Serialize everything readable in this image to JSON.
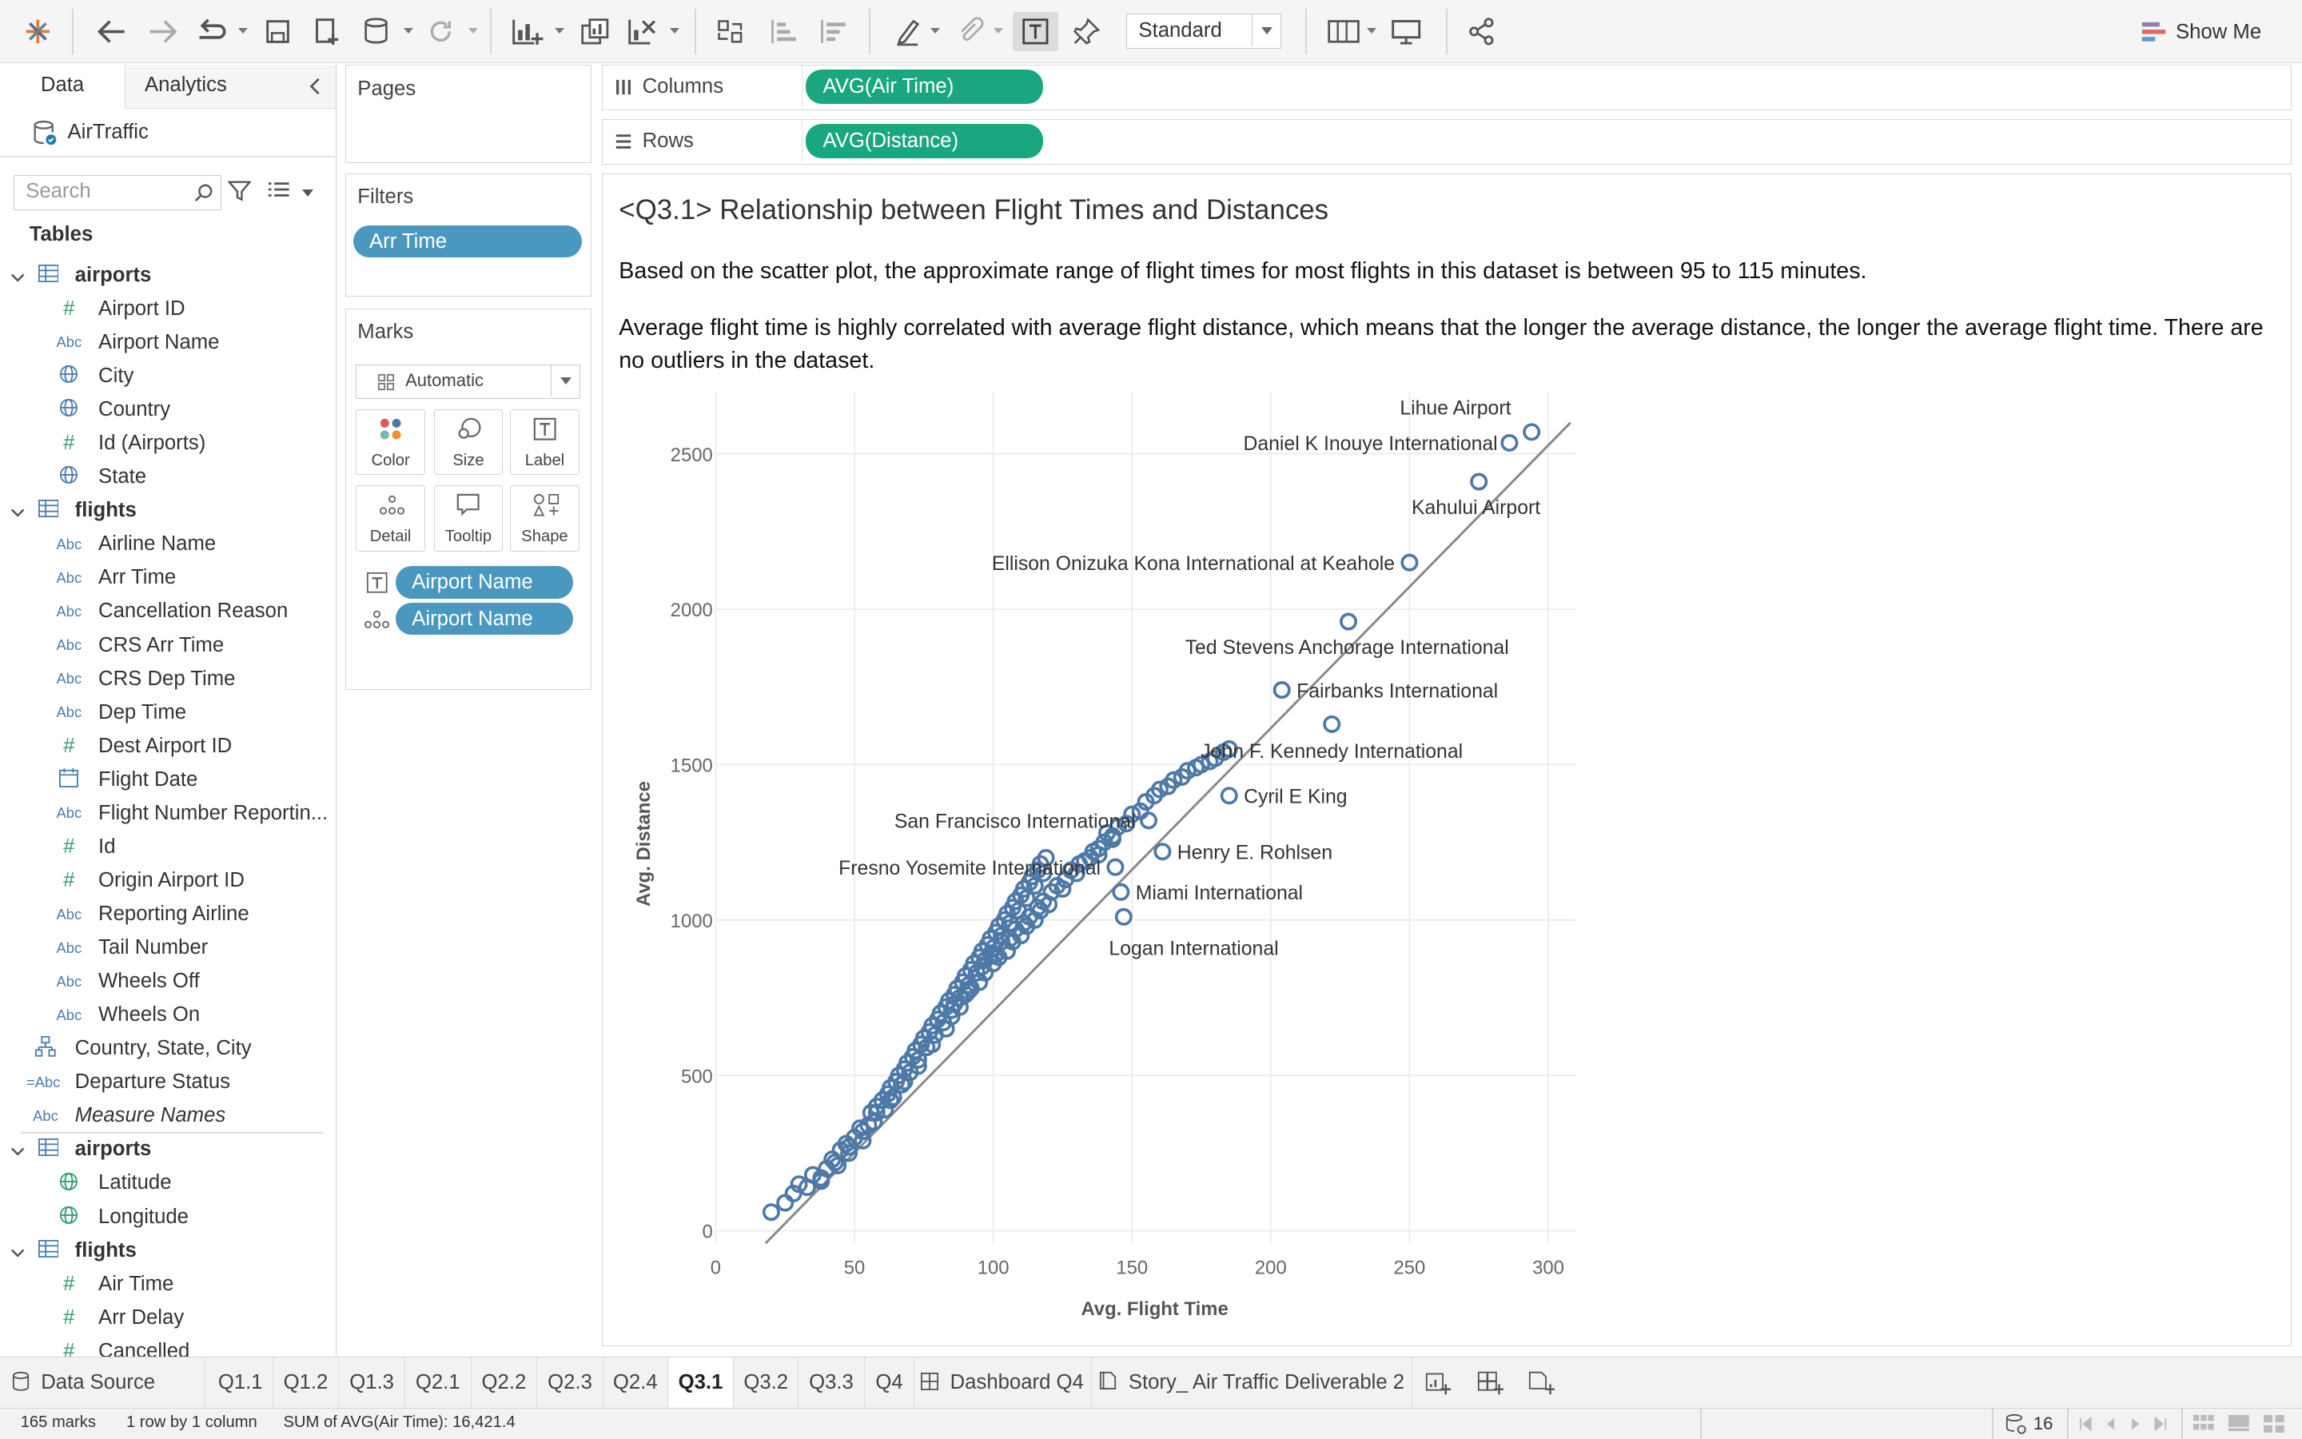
{
  "toolbar": {
    "view_select": "Standard",
    "show_me": "Show Me"
  },
  "data_pane": {
    "tab_data": "Data",
    "tab_analytics": "Analytics",
    "datasource": "AirTraffic",
    "search_placeholder": "Search",
    "tables_heading": "Tables",
    "tree": [
      {
        "type": "table",
        "label": "airports"
      },
      {
        "type": "number",
        "label": "Airport ID"
      },
      {
        "type": "string",
        "label": "Airport Name"
      },
      {
        "type": "geo",
        "label": "City"
      },
      {
        "type": "geo",
        "label": "Country"
      },
      {
        "type": "number",
        "label": "Id (Airports)"
      },
      {
        "type": "geo",
        "label": "State"
      },
      {
        "type": "table",
        "label": "flights"
      },
      {
        "type": "string",
        "label": "Airline Name"
      },
      {
        "type": "string",
        "label": "Arr Time"
      },
      {
        "type": "string",
        "label": "Cancellation Reason"
      },
      {
        "type": "string",
        "label": "CRS Arr Time"
      },
      {
        "type": "string",
        "label": "CRS Dep Time"
      },
      {
        "type": "string",
        "label": "Dep Time"
      },
      {
        "type": "number",
        "label": "Dest Airport ID"
      },
      {
        "type": "date",
        "label": "Flight Date"
      },
      {
        "type": "string",
        "label": "Flight Number Reportin..."
      },
      {
        "type": "number",
        "label": "Id"
      },
      {
        "type": "number",
        "label": "Origin Airport ID"
      },
      {
        "type": "string",
        "label": "Reporting Airline"
      },
      {
        "type": "string",
        "label": "Tail Number"
      },
      {
        "type": "string",
        "label": "Wheels Off"
      },
      {
        "type": "string",
        "label": "Wheels On"
      },
      {
        "type": "hierarchy",
        "label": "Country, State, City"
      },
      {
        "type": "group",
        "label": "Departure Status"
      },
      {
        "type": "string-italic",
        "label": "Measure Names"
      },
      {
        "type": "table",
        "label": "airports"
      },
      {
        "type": "geo-measure",
        "label": "Latitude"
      },
      {
        "type": "geo-measure",
        "label": "Longitude"
      },
      {
        "type": "table",
        "label": "flights"
      },
      {
        "type": "measure",
        "label": "Air Time"
      },
      {
        "type": "measure",
        "label": "Arr Delay"
      },
      {
        "type": "measure",
        "label": "Cancelled"
      }
    ]
  },
  "pages_card": {
    "title": "Pages"
  },
  "filters_card": {
    "title": "Filters",
    "pills": [
      "Arr Time"
    ]
  },
  "marks_card": {
    "title": "Marks",
    "mark_type": "Automatic",
    "buttons": [
      "Color",
      "Size",
      "Label",
      "Detail",
      "Tooltip",
      "Shape"
    ],
    "fields": [
      "Airport Name",
      "Airport Name"
    ]
  },
  "shelves": {
    "columns_label": "Columns",
    "columns_pill": "AVG(Air Time)",
    "rows_label": "Rows",
    "rows_pill": "AVG(Distance)"
  },
  "viz": {
    "title": "<Q3.1> Relationship between Flight Times and Distances",
    "text1": "Based on the scatter plot, the approximate range of flight times for most flights in this dataset is between 95 to 115 minutes.",
    "text2": "Average flight time is highly correlated with average flight distance, which means that the longer the average distance, the longer the average flight time. There are no outliers in the dataset."
  },
  "chart_data": {
    "type": "scatter",
    "xlabel": "Avg. Flight Time",
    "ylabel": "Avg. Distance",
    "xlim": [
      0,
      310
    ],
    "ylim": [
      -40,
      2700
    ],
    "xticks": [
      0,
      50,
      100,
      150,
      200,
      250,
      300
    ],
    "yticks": [
      0,
      500,
      1000,
      1500,
      2000,
      2500
    ],
    "grid": true,
    "trend_line": {
      "x1": 18,
      "y1": -40,
      "x2": 308,
      "y2": 2600
    },
    "labeled_points": [
      {
        "label": "Lihue Airport",
        "x": 294,
        "y": 2570
      },
      {
        "label": "Daniel K Inouye International",
        "x": 286,
        "y": 2535
      },
      {
        "label": "Kahului Airport",
        "x": 275,
        "y": 2410
      },
      {
        "label": "Ellison Onizuka Kona International at Keahole",
        "x": 250,
        "y": 2150
      },
      {
        "label": "Ted Stevens Anchorage International",
        "x": 228,
        "y": 1960
      },
      {
        "label": "Fairbanks International",
        "x": 204,
        "y": 1740
      },
      {
        "label": "John F. Kennedy International",
        "x": 222,
        "y": 1630
      },
      {
        "label": "Cyril E King",
        "x": 185,
        "y": 1400
      },
      {
        "label": "San Francisco International",
        "x": 156,
        "y": 1320
      },
      {
        "label": "Henry E. Rohlsen",
        "x": 161,
        "y": 1220
      },
      {
        "label": "Fresno Yosemite International",
        "x": 144,
        "y": 1170
      },
      {
        "label": "Miami International",
        "x": 146,
        "y": 1090
      },
      {
        "label": "Logan International",
        "x": 147,
        "y": 1010
      }
    ],
    "points": [
      [
        20,
        60
      ],
      [
        25,
        90
      ],
      [
        28,
        120
      ],
      [
        30,
        150
      ],
      [
        33,
        140
      ],
      [
        35,
        180
      ],
      [
        38,
        170
      ],
      [
        40,
        200
      ],
      [
        42,
        230
      ],
      [
        44,
        210
      ],
      [
        45,
        260
      ],
      [
        47,
        280
      ],
      [
        48,
        250
      ],
      [
        50,
        300
      ],
      [
        52,
        330
      ],
      [
        53,
        290
      ],
      [
        55,
        340
      ],
      [
        56,
        380
      ],
      [
        57,
        350
      ],
      [
        58,
        400
      ],
      [
        60,
        420
      ],
      [
        61,
        390
      ],
      [
        62,
        440
      ],
      [
        63,
        460
      ],
      [
        64,
        430
      ],
      [
        65,
        480
      ],
      [
        66,
        500
      ],
      [
        67,
        470
      ],
      [
        68,
        520
      ],
      [
        69,
        540
      ],
      [
        70,
        510
      ],
      [
        71,
        560
      ],
      [
        72,
        580
      ],
      [
        73,
        550
      ],
      [
        74,
        600
      ],
      [
        75,
        620
      ],
      [
        76,
        590
      ],
      [
        77,
        640
      ],
      [
        78,
        660
      ],
      [
        79,
        630
      ],
      [
        80,
        680
      ],
      [
        81,
        700
      ],
      [
        82,
        670
      ],
      [
        83,
        720
      ],
      [
        84,
        740
      ],
      [
        85,
        710
      ],
      [
        86,
        760
      ],
      [
        87,
        780
      ],
      [
        88,
        750
      ],
      [
        89,
        800
      ],
      [
        90,
        820
      ],
      [
        91,
        790
      ],
      [
        92,
        840
      ],
      [
        93,
        860
      ],
      [
        94,
        830
      ],
      [
        95,
        880
      ],
      [
        96,
        900
      ],
      [
        97,
        870
      ],
      [
        98,
        920
      ],
      [
        99,
        940
      ],
      [
        100,
        910
      ],
      [
        101,
        960
      ],
      [
        102,
        980
      ],
      [
        103,
        950
      ],
      [
        104,
        1000
      ],
      [
        105,
        1020
      ],
      [
        106,
        990
      ],
      [
        107,
        1040
      ],
      [
        108,
        1060
      ],
      [
        109,
        1030
      ],
      [
        110,
        1080
      ],
      [
        111,
        1100
      ],
      [
        112,
        1070
      ],
      [
        113,
        1120
      ],
      [
        114,
        1140
      ],
      [
        115,
        1110
      ],
      [
        116,
        1160
      ],
      [
        117,
        1180
      ],
      [
        118,
        1150
      ],
      [
        119,
        1200
      ],
      [
        85,
        690
      ],
      [
        90,
        760
      ],
      [
        95,
        800
      ],
      [
        100,
        860
      ],
      [
        105,
        900
      ],
      [
        110,
        950
      ],
      [
        115,
        1000
      ],
      [
        88,
        720
      ],
      [
        92,
        780
      ],
      [
        97,
        830
      ],
      [
        102,
        880
      ],
      [
        107,
        930
      ],
      [
        112,
        980
      ],
      [
        117,
        1030
      ],
      [
        83,
        650
      ],
      [
        78,
        600
      ],
      [
        73,
        530
      ],
      [
        68,
        480
      ],
      [
        63,
        420
      ],
      [
        58,
        380
      ],
      [
        53,
        320
      ],
      [
        48,
        270
      ],
      [
        43,
        220
      ],
      [
        38,
        160
      ],
      [
        86,
        730
      ],
      [
        91,
        770
      ],
      [
        96,
        850
      ],
      [
        101,
        890
      ],
      [
        106,
        940
      ],
      [
        111,
        990
      ],
      [
        116,
        1040
      ],
      [
        121,
        1090
      ],
      [
        126,
        1130
      ],
      [
        131,
        1180
      ],
      [
        136,
        1220
      ],
      [
        141,
        1280
      ],
      [
        120,
        1050
      ],
      [
        125,
        1100
      ],
      [
        130,
        1150
      ],
      [
        135,
        1200
      ],
      [
        140,
        1250
      ],
      [
        145,
        1300
      ],
      [
        150,
        1340
      ],
      [
        155,
        1380
      ],
      [
        160,
        1420
      ],
      [
        165,
        1450
      ],
      [
        170,
        1480
      ],
      [
        175,
        1500
      ],
      [
        180,
        1520
      ],
      [
        185,
        1550
      ],
      [
        138,
        1210
      ],
      [
        143,
        1260
      ],
      [
        148,
        1310
      ],
      [
        153,
        1350
      ],
      [
        158,
        1400
      ],
      [
        163,
        1430
      ],
      [
        168,
        1460
      ],
      [
        173,
        1490
      ],
      [
        178,
        1510
      ],
      [
        183,
        1540
      ],
      [
        99,
        890
      ],
      [
        103,
        930
      ],
      [
        108,
        970
      ],
      [
        113,
        1010
      ],
      [
        118,
        1060
      ],
      [
        123,
        1110
      ],
      [
        128,
        1160
      ],
      [
        133,
        1190
      ],
      [
        138,
        1230
      ],
      [
        143,
        1270
      ]
    ]
  },
  "bottom_tabs": {
    "data_source": "Data Source",
    "sheets": [
      "Q1.1",
      "Q1.2",
      "Q1.3",
      "Q2.1",
      "Q2.2",
      "Q2.3",
      "Q2.4",
      "Q3.1",
      "Q3.2",
      "Q3.3",
      "Q4"
    ],
    "active_sheet": "Q3.1",
    "dashboard": "Dashboard Q4",
    "story": "Story_ Air Traffic Deliverable 2"
  },
  "status_bar": {
    "marks": "165 marks",
    "rows_cols": "1 row by 1 column",
    "sum": "SUM of AVG(Air Time): 16,421.4",
    "count": "16"
  },
  "colors": {
    "accent_green": "#1aa77f",
    "pill_blue": "#4a97c0",
    "mark_blue": "#4e79a7"
  }
}
